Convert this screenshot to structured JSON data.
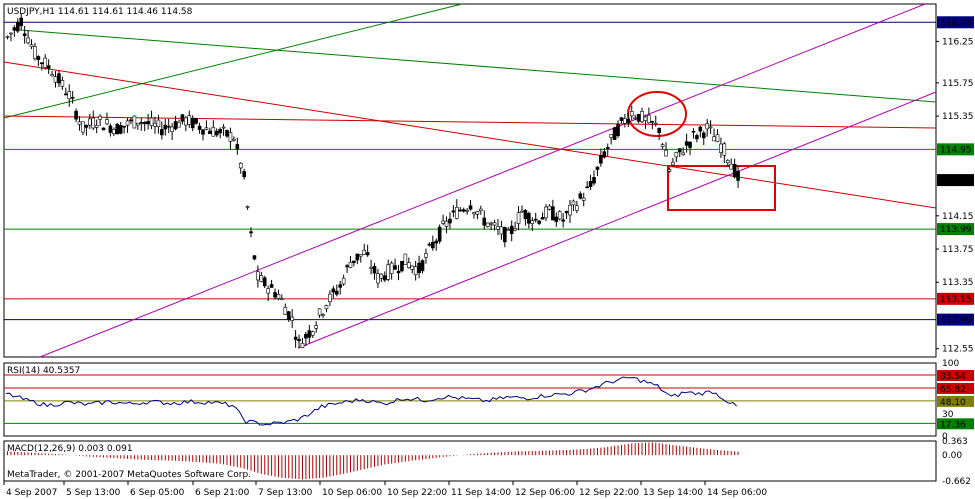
{
  "chart_data": [
    {
      "type": "candlestick",
      "title": "USDJPY,H1  114.61 114.61 114.46 114.58",
      "ylim": [
        112.45,
        116.7
      ],
      "y_ticks": [
        "116.25",
        "115.75",
        "115.35",
        "114.15",
        "113.75",
        "113.35",
        "112.55"
      ],
      "x_ticks": [
        "4 Sep 2007",
        "5 Sep 13:00",
        "6 Sep 05:00",
        "6 Sep 21:00",
        "7 Sep 13:00",
        "10 Sep 06:00",
        "10 Sep 22:00",
        "11 Sep 14:00",
        "12 Sep 06:00",
        "12 Sep 22:00",
        "13 Sep 14:00",
        "14 Sep 06:00"
      ],
      "levels": [
        {
          "value": 116.48,
          "label": "116.48",
          "color": "#000080"
        },
        {
          "value": 114.95,
          "label": "114.95",
          "color": "#008000"
        },
        {
          "value": 113.99,
          "label": "113.99",
          "color": "#008000"
        },
        {
          "value": 113.15,
          "label": "113.15",
          "color": "#cc0000"
        },
        {
          "value": 112.9,
          "label": "112.90",
          "color": "#000080"
        }
      ],
      "current_price": {
        "value": 114.58,
        "label": "114.58"
      },
      "price_path": [
        [
          0,
          116.3
        ],
        [
          4,
          116.5
        ],
        [
          8,
          116.1
        ],
        [
          13,
          115.9
        ],
        [
          18,
          115.6
        ],
        [
          22,
          115.2
        ],
        [
          26,
          115.3
        ],
        [
          32,
          115.2
        ],
        [
          38,
          115.3
        ],
        [
          45,
          115.2
        ],
        [
          52,
          115.3
        ],
        [
          58,
          115.2
        ],
        [
          66,
          115.1
        ],
        [
          69,
          114.6
        ],
        [
          71,
          113.9
        ],
        [
          73,
          113.4
        ],
        [
          76,
          113.3
        ],
        [
          79,
          113.2
        ],
        [
          83,
          112.9
        ],
        [
          85,
          112.6
        ],
        [
          89,
          112.8
        ],
        [
          93,
          113.1
        ],
        [
          97,
          113.3
        ],
        [
          100,
          113.6
        ],
        [
          104,
          113.7
        ],
        [
          108,
          113.4
        ],
        [
          112,
          113.5
        ],
        [
          116,
          113.6
        ],
        [
          120,
          113.5
        ],
        [
          124,
          113.8
        ],
        [
          127,
          114.0
        ],
        [
          131,
          114.2
        ],
        [
          135,
          114.3
        ],
        [
          139,
          114.1
        ],
        [
          142,
          114.0
        ],
        [
          146,
          113.9
        ],
        [
          150,
          114.2
        ],
        [
          154,
          114.1
        ],
        [
          158,
          114.2
        ],
        [
          162,
          114.1
        ],
        [
          166,
          114.3
        ],
        [
          170,
          114.5
        ],
        [
          174,
          114.9
        ],
        [
          178,
          115.2
        ],
        [
          182,
          115.4
        ],
        [
          186,
          115.3
        ],
        [
          190,
          115.2
        ],
        [
          193,
          114.7
        ],
        [
          196,
          114.9
        ],
        [
          200,
          115.1
        ],
        [
          204,
          115.2
        ],
        [
          208,
          115.0
        ],
        [
          211,
          114.8
        ],
        [
          213,
          114.6
        ]
      ],
      "colors": {
        "bull": "#ffffff",
        "bear": "#000000",
        "wick": "#000000",
        "grid": "#000000"
      }
    },
    {
      "type": "line",
      "title": "RSI(14) 40.5357",
      "ylim": [
        0,
        100
      ],
      "y_ticks": [
        "100",
        "30",
        "0"
      ],
      "levels": [
        {
          "value": 83.54,
          "label": "83.54",
          "color": "#cc0000"
        },
        {
          "value": 65.82,
          "label": "65.82",
          "color": "#cc0000"
        },
        {
          "value": 48.1,
          "label": "48.10",
          "color": "#808000"
        },
        {
          "value": 17.36,
          "label": "17.36",
          "color": "#008000"
        }
      ],
      "values": [
        [
          0,
          58
        ],
        [
          6,
          49
        ],
        [
          12,
          42
        ],
        [
          18,
          46
        ],
        [
          24,
          43
        ],
        [
          30,
          47
        ],
        [
          36,
          44
        ],
        [
          42,
          47
        ],
        [
          48,
          45
        ],
        [
          54,
          47
        ],
        [
          60,
          46
        ],
        [
          66,
          42
        ],
        [
          70,
          20
        ],
        [
          76,
          16
        ],
        [
          82,
          19
        ],
        [
          86,
          24
        ],
        [
          92,
          40
        ],
        [
          98,
          46
        ],
        [
          104,
          50
        ],
        [
          110,
          44
        ],
        [
          116,
          52
        ],
        [
          122,
          49
        ],
        [
          128,
          54
        ],
        [
          134,
          51
        ],
        [
          140,
          48
        ],
        [
          146,
          53
        ],
        [
          152,
          52
        ],
        [
          158,
          56
        ],
        [
          164,
          58
        ],
        [
          170,
          64
        ],
        [
          176,
          74
        ],
        [
          182,
          80
        ],
        [
          186,
          75
        ],
        [
          190,
          68
        ],
        [
          194,
          53
        ],
        [
          198,
          60
        ],
        [
          202,
          58
        ],
        [
          206,
          61
        ],
        [
          210,
          49
        ],
        [
          213,
          40
        ]
      ],
      "color": "#000080"
    },
    {
      "type": "bar",
      "title": "MACD(12,26,9) 0.003 0.091",
      "ylim": [
        -0.662,
        0.363
      ],
      "y_ticks": [
        "0.363",
        "0.00",
        "-0.662"
      ],
      "footer": "MetaTrader, © 2001-2007 MetaQuotes Software Corp.",
      "values": [
        [
          0,
          0.1
        ],
        [
          8,
          0.06
        ],
        [
          16,
          0.02
        ],
        [
          24,
          -0.04
        ],
        [
          32,
          -0.08
        ],
        [
          40,
          -0.12
        ],
        [
          48,
          -0.14
        ],
        [
          56,
          -0.18
        ],
        [
          62,
          -0.22
        ],
        [
          68,
          -0.32
        ],
        [
          74,
          -0.48
        ],
        [
          80,
          -0.58
        ],
        [
          86,
          -0.62
        ],
        [
          92,
          -0.58
        ],
        [
          98,
          -0.48
        ],
        [
          104,
          -0.36
        ],
        [
          110,
          -0.24
        ],
        [
          118,
          -0.14
        ],
        [
          126,
          -0.06
        ],
        [
          134,
          0.02
        ],
        [
          142,
          0.07
        ],
        [
          150,
          0.1
        ],
        [
          158,
          0.12
        ],
        [
          166,
          0.14
        ],
        [
          174,
          0.2
        ],
        [
          182,
          0.3
        ],
        [
          188,
          0.33
        ],
        [
          194,
          0.26
        ],
        [
          200,
          0.2
        ],
        [
          206,
          0.14
        ],
        [
          213,
          0.09
        ]
      ],
      "color": "#b00000"
    }
  ]
}
